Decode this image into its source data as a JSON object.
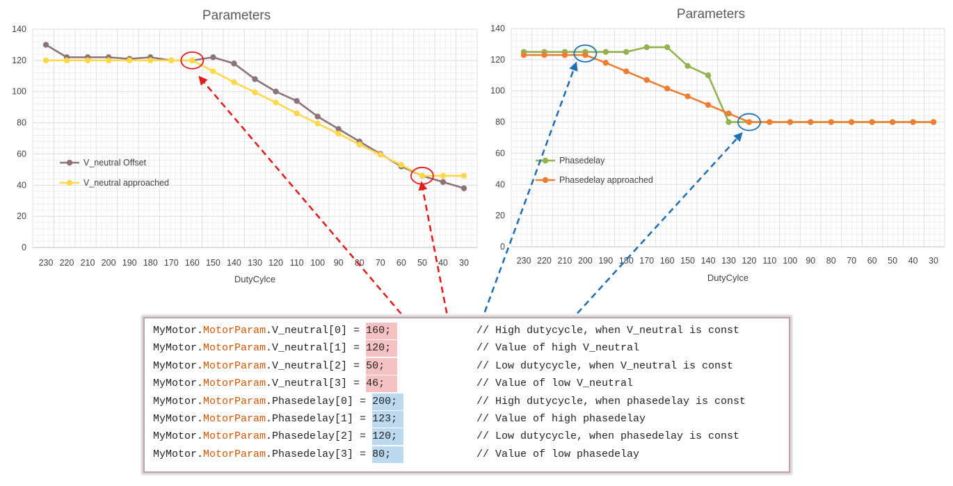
{
  "chart_data": [
    {
      "type": "line",
      "title": "Parameters",
      "xlabel": "DutyCylce",
      "ylabel": "",
      "ylim": [
        0,
        140
      ],
      "yticks": [
        0,
        20,
        40,
        60,
        80,
        100,
        120,
        140
      ],
      "categories": [
        "230",
        "220",
        "210",
        "200",
        "190",
        "180",
        "170",
        "160",
        "150",
        "140",
        "130",
        "120",
        "110",
        "100",
        "90",
        "80",
        "70",
        "60",
        "50",
        "40",
        "30"
      ],
      "grid": true,
      "legend_position": "left-middle",
      "series": [
        {
          "name": "V_neutral Offset",
          "color": "#8c7378",
          "values": [
            130,
            122,
            122,
            122,
            121,
            122,
            120,
            120,
            122,
            118,
            108,
            100,
            94,
            84,
            76,
            68,
            60,
            52,
            46,
            42,
            38
          ]
        },
        {
          "name": "V_neutral approached",
          "color": "#ffd84a",
          "values": [
            120,
            120,
            120,
            120,
            120,
            120,
            120,
            120,
            113,
            106,
            99.5,
            93,
            86,
            79.5,
            73,
            66,
            59.5,
            53,
            46,
            46,
            46
          ]
        }
      ],
      "highlight_circles_at": [
        "160",
        "50"
      ]
    },
    {
      "type": "line",
      "title": "Parameters",
      "xlabel": "DutyCylce",
      "ylabel": "",
      "ylim": [
        0,
        140
      ],
      "yticks": [
        0,
        20,
        40,
        60,
        80,
        100,
        120,
        140
      ],
      "categories": [
        "230",
        "220",
        "210",
        "200",
        "190",
        "180",
        "170",
        "160",
        "150",
        "140",
        "130",
        "120",
        "110",
        "100",
        "90",
        "80",
        "70",
        "60",
        "50",
        "40",
        "30"
      ],
      "grid": true,
      "legend_position": "left-middle",
      "series": [
        {
          "name": "Phasedelay",
          "color": "#92b24f",
          "values": [
            125,
            125,
            125,
            125,
            125,
            125,
            128,
            128,
            116,
            110,
            80,
            80,
            80,
            80,
            80,
            80,
            80,
            80,
            80,
            80,
            80
          ]
        },
        {
          "name": "Phasedelay approached",
          "color": "#ed7d31",
          "values": [
            123,
            123,
            123,
            123,
            118,
            112.5,
            107,
            101.5,
            96.5,
            91,
            85.5,
            80,
            80,
            80,
            80,
            80,
            80,
            80,
            80,
            80,
            80
          ]
        }
      ],
      "highlight_circles_at": [
        "200",
        "120"
      ]
    }
  ],
  "code": {
    "lines": [
      {
        "obj": "MyMotor.",
        "param": "MotorParam",
        "field": ".V_neutral[0] = ",
        "value": "160;",
        "comment": "// High dutycycle, when V_neutral is const"
      },
      {
        "obj": "MyMotor.",
        "param": "MotorParam",
        "field": ".V_neutral[1] = ",
        "value": "120;",
        "comment": "// Value of high V_neutral"
      },
      {
        "obj": "MyMotor.",
        "param": "MotorParam",
        "field": ".V_neutral[2] = ",
        "value": "50;",
        "comment": "// Low dutycycle, when V_neutral is const"
      },
      {
        "obj": "MyMotor.",
        "param": "MotorParam",
        "field": ".V_neutral[3] = ",
        "value": "46;",
        "comment": "// Value of low V_neutral"
      },
      {
        "obj": "MyMotor.",
        "param": "MotorParam",
        "field": ".Phasedelay[0] = ",
        "value": "200;",
        "comment": "// High dutycycle, when phasedelay is const"
      },
      {
        "obj": "MyMotor.",
        "param": "MotorParam",
        "field": ".Phasedelay[1] = ",
        "value": "123;",
        "comment": "// Value of high phasedelay"
      },
      {
        "obj": "MyMotor.",
        "param": "MotorParam",
        "field": ".Phasedelay[2] = ",
        "value": "120;",
        "comment": "// Low dutycycle, when phasedelay is const"
      },
      {
        "obj": "MyMotor.",
        "param": "MotorParam",
        "field": ".Phasedelay[3] = ",
        "value": "80;",
        "comment": "// Value of low phasedelay"
      }
    ]
  },
  "colors": {
    "arrow_red": "#e31b1b",
    "arrow_blue": "#1f6fb5",
    "highlight_red": "#f6c1c3",
    "highlight_blue": "#bcd9ef",
    "param_orange": "#d35400"
  }
}
